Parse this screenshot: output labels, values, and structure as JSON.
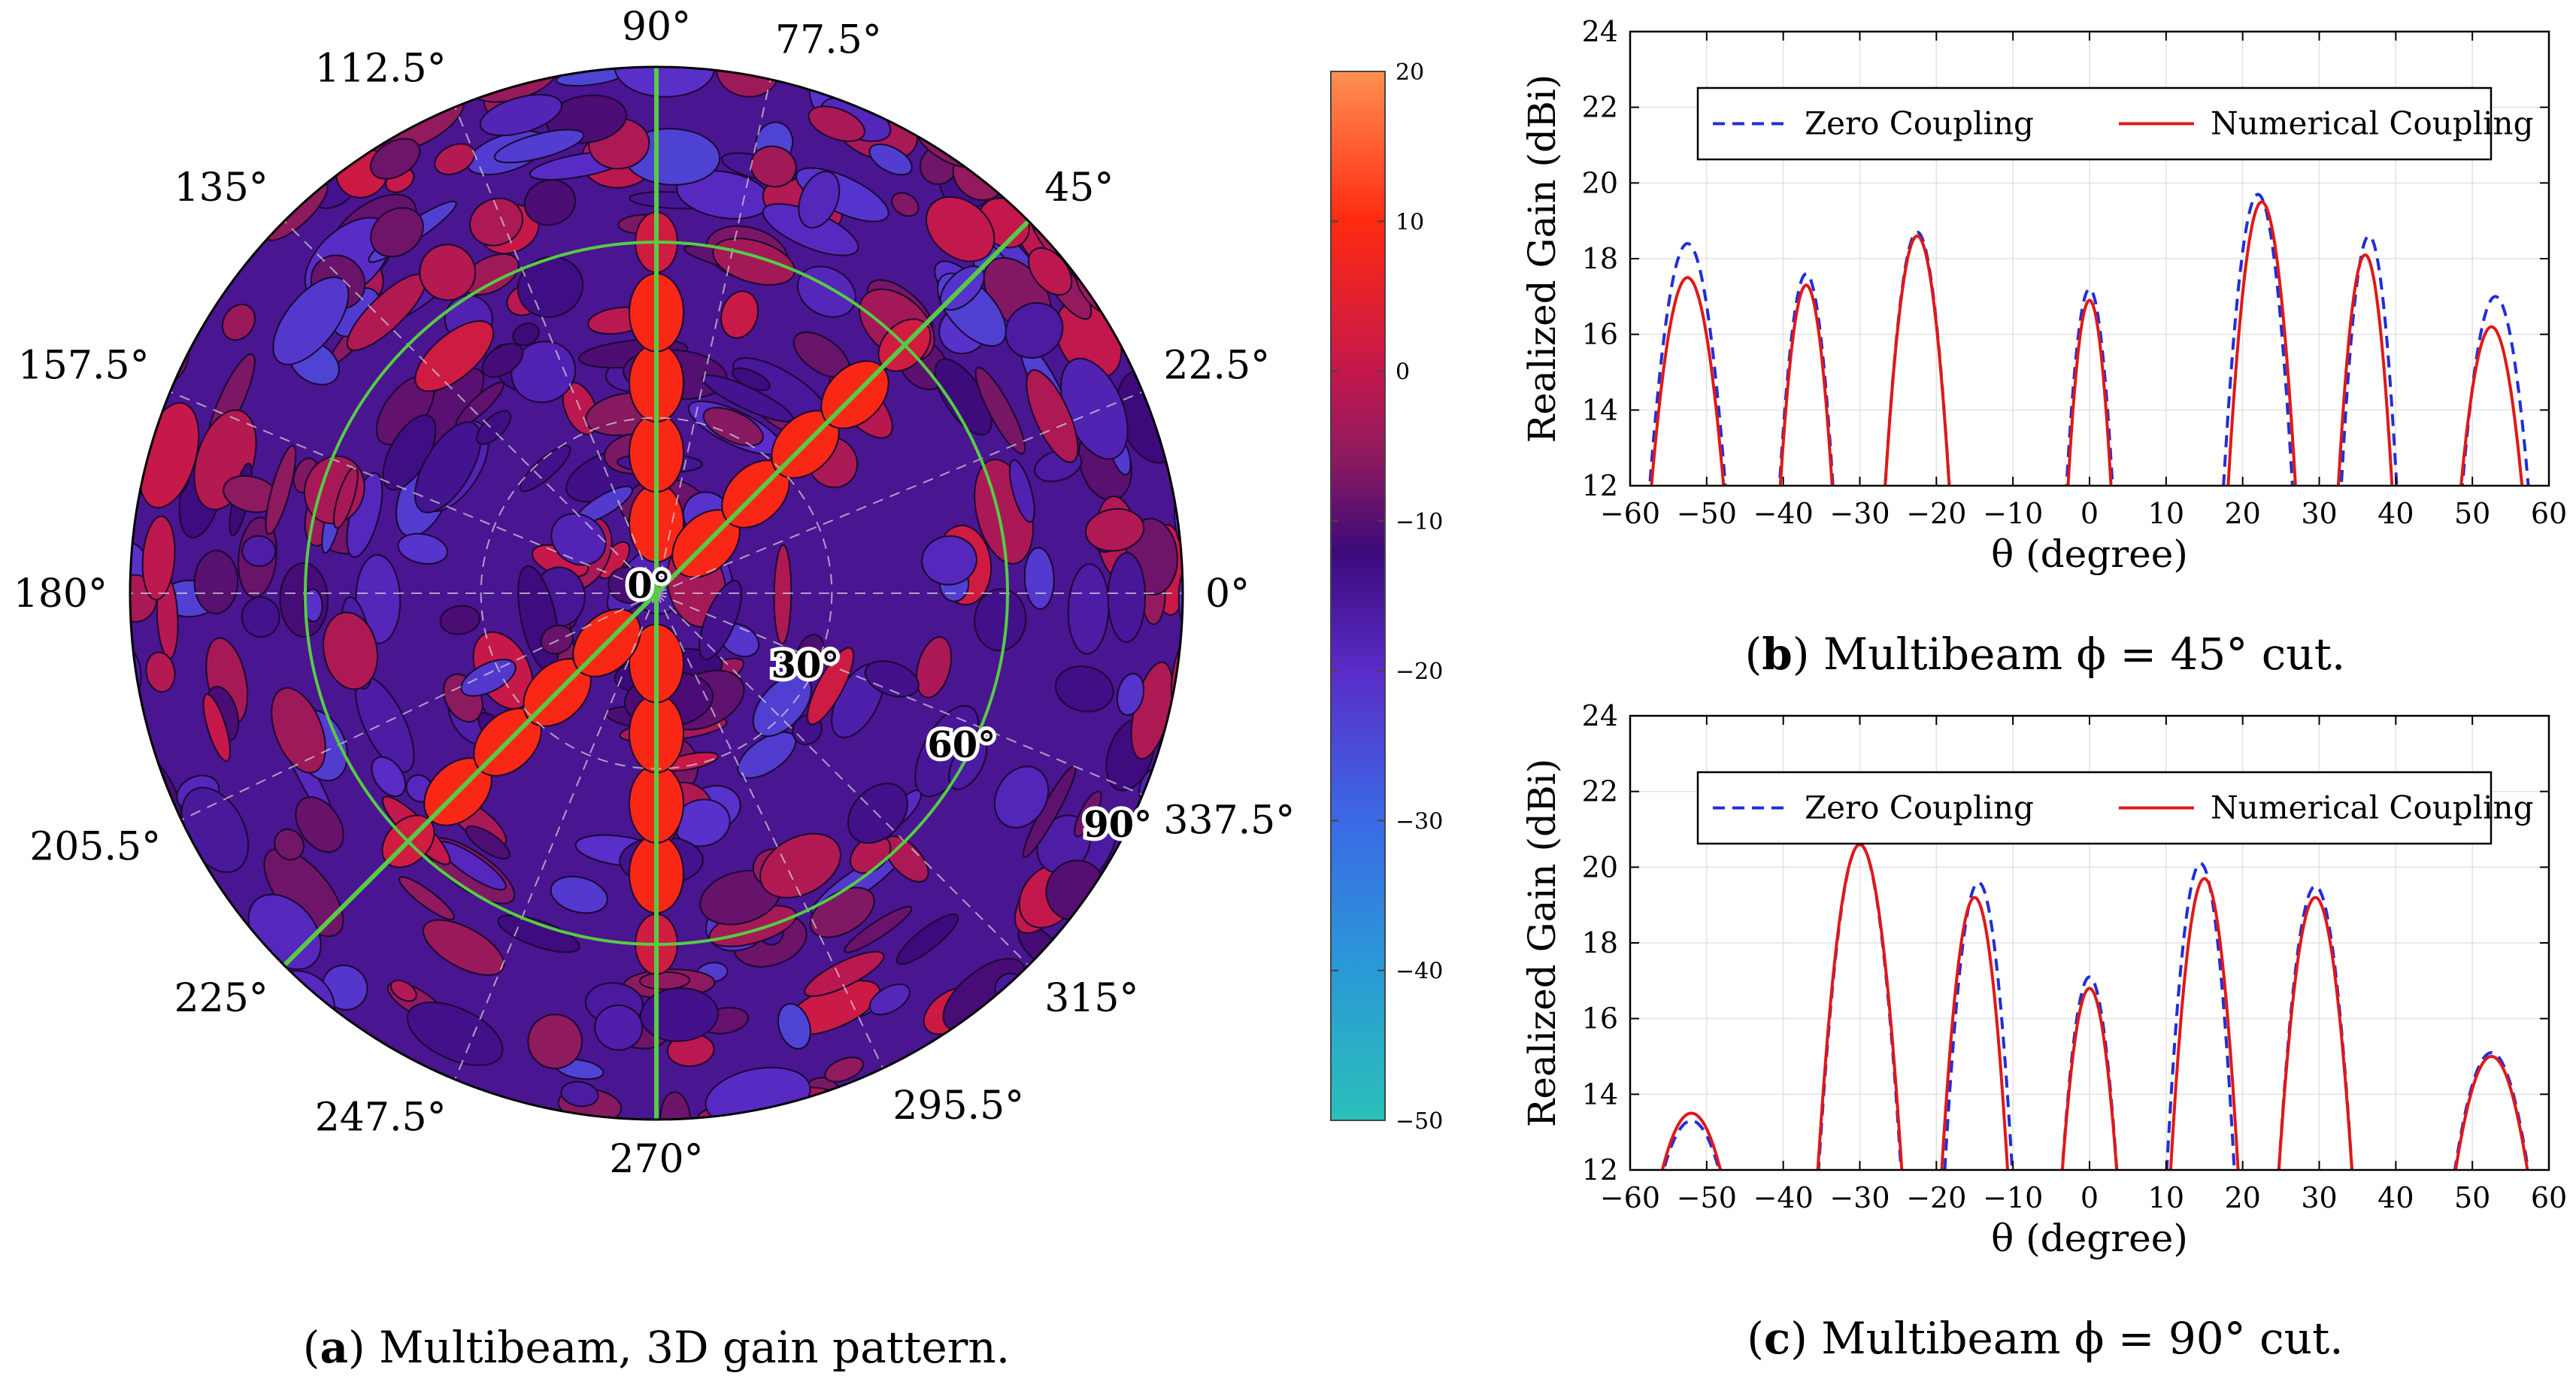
{
  "captions": {
    "a": {
      "tag": "a",
      "text": ") Multibeam, 3D gain pattern."
    },
    "b": {
      "tag": "b",
      "text": ") Multibeam ϕ = 45° cut."
    },
    "c": {
      "tag": "c",
      "text": ") Multibeam ϕ = 90° cut."
    }
  },
  "colors": {
    "zero": "#1f2fd6",
    "numerical": "#e01818",
    "cut_lines": "#55cc44"
  },
  "chart_data": [
    {
      "type": "heatmap",
      "id": "polar",
      "title": "Multibeam, 3D gain pattern",
      "angle_labels": [
        {
          "deg": 90,
          "label": "90°"
        },
        {
          "deg": 77.5,
          "label": "77.5°"
        },
        {
          "deg": 45,
          "label": "45°"
        },
        {
          "deg": 22.5,
          "label": "22.5°"
        },
        {
          "deg": 0,
          "label": "0°"
        },
        {
          "deg": 337.5,
          "label": "337.5°"
        },
        {
          "deg": 315,
          "label": "315°"
        },
        {
          "deg": 295.5,
          "label": "295.5°"
        },
        {
          "deg": 270,
          "label": "270°"
        },
        {
          "deg": 247.5,
          "label": "247.5°"
        },
        {
          "deg": 225,
          "label": "225°"
        },
        {
          "deg": 205.5,
          "label": "205.5°"
        },
        {
          "deg": 180,
          "label": "180°"
        },
        {
          "deg": 157.5,
          "label": "157.5°"
        },
        {
          "deg": 135,
          "label": "135°"
        },
        {
          "deg": 112.5,
          "label": "112.5°"
        }
      ],
      "radial_labels": [
        {
          "theta": 0,
          "label": "0°"
        },
        {
          "theta": 30,
          "label": "30°"
        },
        {
          "theta": 60,
          "label": "60°"
        },
        {
          "theta": 90,
          "label": "90°"
        }
      ],
      "radial_max": 90,
      "inner_ring_theta": 60,
      "cut_angles_deg": [
        90,
        45
      ],
      "colorbar": {
        "min": -50,
        "max": 20,
        "ticks": [
          20,
          10,
          0,
          -10,
          -20,
          -30,
          -40,
          -50
        ],
        "tick_labels": [
          "20",
          "10",
          "0",
          "−10",
          "−20",
          "−30",
          "−40",
          "−50"
        ],
        "stops": [
          {
            "v": -50,
            "c": "#2ac0b8"
          },
          {
            "v": -40,
            "c": "#2a9ad6"
          },
          {
            "v": -30,
            "c": "#3a6ae6"
          },
          {
            "v": -20,
            "c": "#5a2cc8"
          },
          {
            "v": -12,
            "c": "#3c0a7a"
          },
          {
            "v": -6,
            "c": "#8a1a60"
          },
          {
            "v": 0,
            "c": "#c4184c"
          },
          {
            "v": 10,
            "c": "#ff2a10"
          },
          {
            "v": 20,
            "c": "#ff9050"
          }
        ]
      }
    },
    {
      "type": "line",
      "id": "cut45",
      "title": "Multibeam ϕ = 45° cut",
      "xlabel": "θ  (degree)",
      "ylabel": "Realized Gain  (dBi)",
      "xlim": [
        -60,
        60
      ],
      "ylim": [
        12,
        24
      ],
      "xticks": [
        -60,
        -50,
        -40,
        -30,
        -20,
        -10,
        0,
        10,
        20,
        30,
        40,
        50,
        60
      ],
      "xtick_labels": [
        "−60",
        "−50",
        "−40",
        "−30",
        "−20",
        "−10",
        "0",
        "10",
        "20",
        "30",
        "40",
        "50",
        "60"
      ],
      "yticks": [
        12,
        14,
        16,
        18,
        20,
        22,
        24
      ],
      "ytick_labels": [
        "12",
        "14",
        "16",
        "18",
        "20",
        "22",
        "24"
      ],
      "legend_position": "top",
      "series": [
        {
          "name": "Zero Coupling",
          "style": "dashed",
          "lobes": [
            {
              "c": -52.5,
              "peak": 18.4,
              "hw": 5.2
            },
            {
              "c": -37,
              "peak": 17.6,
              "hw": 3.7
            },
            {
              "c": -22.5,
              "peak": 18.7,
              "hw": 4.4
            },
            {
              "c": 0,
              "peak": 17.2,
              "hw": 3.2
            },
            {
              "c": 22,
              "peak": 19.7,
              "hw": 4.7
            },
            {
              "c": 36.5,
              "peak": 18.6,
              "hw": 3.8
            },
            {
              "c": 53,
              "peak": 17.0,
              "hw": 4.6
            }
          ]
        },
        {
          "name": "Numerical Coupling",
          "style": "solid",
          "lobes": [
            {
              "c": -52.5,
              "peak": 17.5,
              "hw": 5.0
            },
            {
              "c": -37,
              "peak": 17.3,
              "hw": 3.6
            },
            {
              "c": -22.5,
              "peak": 18.6,
              "hw": 4.4
            },
            {
              "c": 0,
              "peak": 16.9,
              "hw": 3.0
            },
            {
              "c": 22.5,
              "peak": 19.5,
              "hw": 4.6
            },
            {
              "c": 36,
              "peak": 18.1,
              "hw": 3.7
            },
            {
              "c": 52.5,
              "peak": 16.2,
              "hw": 4.3
            }
          ]
        }
      ]
    },
    {
      "type": "line",
      "id": "cut90",
      "title": "Multibeam ϕ = 90° cut",
      "xlabel": "θ  (degree)",
      "ylabel": "Realized Gain  (dBi)",
      "xlim": [
        -60,
        60
      ],
      "ylim": [
        12,
        24
      ],
      "xticks": [
        -60,
        -50,
        -40,
        -30,
        -20,
        -10,
        0,
        10,
        20,
        30,
        40,
        50,
        60
      ],
      "xtick_labels": [
        "−60",
        "−50",
        "−40",
        "−30",
        "−20",
        "−10",
        "0",
        "10",
        "20",
        "30",
        "40",
        "50",
        "60"
      ],
      "yticks": [
        12,
        14,
        16,
        18,
        20,
        22,
        24
      ],
      "ytick_labels": [
        "12",
        "14",
        "16",
        "18",
        "20",
        "22",
        "24"
      ],
      "legend_position": "top",
      "series": [
        {
          "name": "Zero Coupling",
          "style": "dashed",
          "lobes": [
            {
              "c": -52,
              "peak": 13.3,
              "hw": 4.5
            },
            {
              "c": -30,
              "peak": 20.6,
              "hw": 5.6
            },
            {
              "c": -14.5,
              "peak": 19.6,
              "hw": 4.6
            },
            {
              "c": 0,
              "peak": 17.1,
              "hw": 3.8
            },
            {
              "c": 14.5,
              "peak": 20.1,
              "hw": 4.6
            },
            {
              "c": 29.5,
              "peak": 19.5,
              "hw": 5.0
            },
            {
              "c": 52.5,
              "peak": 15.1,
              "hw": 5.3
            }
          ]
        },
        {
          "name": "Numerical Coupling",
          "style": "solid",
          "lobes": [
            {
              "c": -52,
              "peak": 13.5,
              "hw": 4.6
            },
            {
              "c": -30,
              "peak": 20.6,
              "hw": 5.7
            },
            {
              "c": -15,
              "peak": 19.2,
              "hw": 4.5
            },
            {
              "c": 0,
              "peak": 16.8,
              "hw": 3.8
            },
            {
              "c": 15,
              "peak": 19.7,
              "hw": 4.6
            },
            {
              "c": 29.5,
              "peak": 19.2,
              "hw": 5.0
            },
            {
              "c": 52.5,
              "peak": 15.0,
              "hw": 5.2
            }
          ]
        }
      ]
    }
  ]
}
